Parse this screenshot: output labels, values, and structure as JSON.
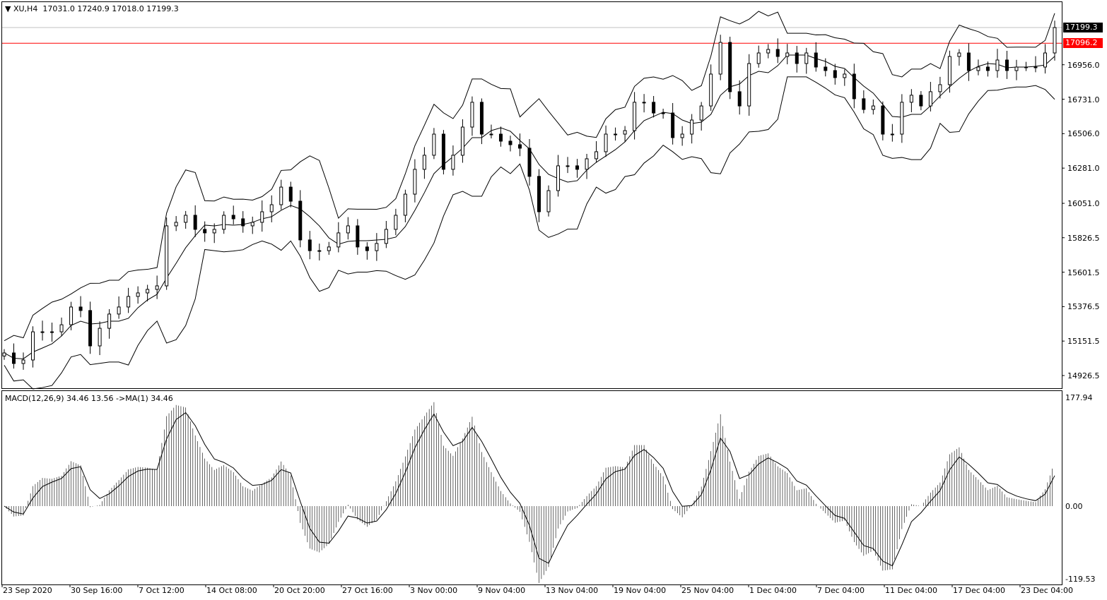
{
  "header": {
    "symbol": "XU,H4",
    "ohlc": "17031.0 17240.9 17018.0 17199.3"
  },
  "macd_header": "MACD(12,26,9) 34.46 13.56  ->MA(1) 34.46",
  "colors": {
    "background": "#ffffff",
    "candle": "#000000",
    "level_line": "#ff0000",
    "bid_line": "#c0c0c0",
    "price_tag": "#000000",
    "level_tag": "#ff0000"
  },
  "chart_data": [
    {
      "type": "candlestick",
      "indicators": [
        "Bollinger Bands",
        "MACD"
      ],
      "grid": false,
      "ylim": [
        14843.5,
        17365
      ],
      "y_ticks": [
        "16956.0",
        "16731.0",
        "16506.0",
        "16281.0",
        "16051.0",
        "15826.5",
        "15601.5",
        "15376.5",
        "15151.5",
        "14926.5"
      ],
      "y_tick_values": [
        16956.0,
        16731.0,
        16506.0,
        16281.0,
        16051.0,
        15826.5,
        15601.5,
        15376.5,
        15151.5,
        14926.5
      ],
      "current_price": {
        "label": "17199.3",
        "value": 17199.3
      },
      "level_line": {
        "label": "17096.2",
        "value": 17096.2
      },
      "x_ticks": [
        "23 Sep 2020",
        "30 Sep 16:00",
        "7 Oct 12:00",
        "14 Oct 08:00",
        "20 Oct 20:00",
        "27 Oct 16:00",
        "3 Nov 00:00",
        "9 Nov 04:00",
        "13 Nov 04:00",
        "19 Nov 04:00",
        "25 Nov 04:00",
        "1 Dec 04:00",
        "7 Dec 04:00",
        "11 Dec 04:00",
        "17 Dec 04:00",
        "23 Dec 04:00"
      ],
      "closes": [
        15074,
        15005,
        15028,
        15212,
        15212,
        15212,
        15258,
        15374,
        15351,
        15120,
        15235,
        15328,
        15374,
        15443,
        15466,
        15489,
        15512,
        15904,
        15927,
        15973,
        15881,
        15858,
        15881,
        15973,
        15950,
        15904,
        15927,
        15996,
        16042,
        16157,
        16065,
        15812,
        15742,
        15742,
        15766,
        15858,
        15904,
        15766,
        15742,
        15789,
        15881,
        15973,
        16111,
        16273,
        16365,
        16503,
        16273,
        16365,
        16549,
        16711,
        16503,
        16503,
        16457,
        16434,
        16411,
        16227,
        15996,
        16134,
        16296,
        16296,
        16273,
        16342,
        16388,
        16503,
        16503,
        16526,
        16711,
        16711,
        16641,
        16641,
        16480,
        16503,
        16595,
        16687,
        16895,
        17102,
        16780,
        16687,
        16964,
        17033,
        17056,
        17010,
        17033,
        16964,
        17033,
        16941,
        16918,
        16872,
        16895,
        16734,
        16664,
        16687,
        16503,
        16503,
        16711,
        16757,
        16687,
        16780,
        16826,
        17010,
        17033,
        16918,
        16941,
        16918,
        16987,
        16918,
        16941,
        16941,
        16941,
        17033,
        17199
      ]
    },
    {
      "type": "bar",
      "name": "MACD(12,26,9)",
      "ylim": [
        -128.2,
        189.4
      ],
      "y_ticks": [
        "177.94",
        "0.00",
        "-119.53"
      ],
      "y_tick_values": [
        177.94,
        0,
        -119.53
      ],
      "last_values": {
        "macd": 34.46,
        "signal": 13.56
      }
    }
  ]
}
